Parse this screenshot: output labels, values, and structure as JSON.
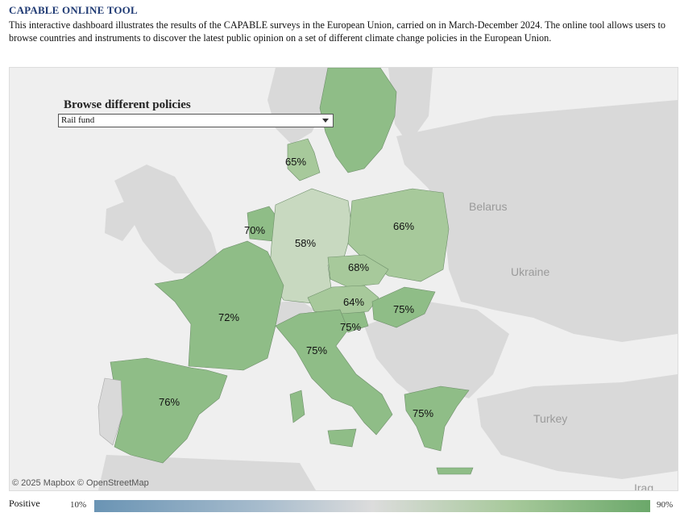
{
  "header": {
    "title": "CAPABLE ONLINE TOOL",
    "description": "This interactive dashboard illustrates the results of the CAPABLE surveys in the European Union, carried on in March-December 2024. The online tool allows users to browse countries and instruments to discover the latest public opinion on a set of different climate change policies in the European Union."
  },
  "control": {
    "title": "Browse different policies",
    "selected": "Rail fund"
  },
  "map": {
    "attribution": "© 2025 Mapbox © OpenStreetMap",
    "base_labels": [
      "Belarus",
      "Ukraine",
      "Turkey",
      "Iraq"
    ],
    "country_values": [
      {
        "country": "Sweden",
        "value": null
      },
      {
        "country": "Denmark",
        "value": "65%"
      },
      {
        "country": "Netherlands",
        "value": "70%"
      },
      {
        "country": "Germany",
        "value": "58%"
      },
      {
        "country": "Poland",
        "value": "66%"
      },
      {
        "country": "Czechia",
        "value": "68%"
      },
      {
        "country": "Austria",
        "value": "64%"
      },
      {
        "country": "Hungary",
        "value": "75%"
      },
      {
        "country": "Slovenia",
        "value": "75%"
      },
      {
        "country": "France",
        "value": "72%"
      },
      {
        "country": "Italy",
        "value": "75%"
      },
      {
        "country": "Spain",
        "value": "76%"
      },
      {
        "country": "Greece",
        "value": "75%"
      }
    ],
    "colors": {
      "high": "#8fbd87",
      "mid": "#a7c99b",
      "low": "#c8d9c0",
      "non_survey": "#d9d9d9",
      "sea": "#efefef"
    }
  },
  "legend": {
    "label": "Positive",
    "min": "10%",
    "max": "90%"
  }
}
